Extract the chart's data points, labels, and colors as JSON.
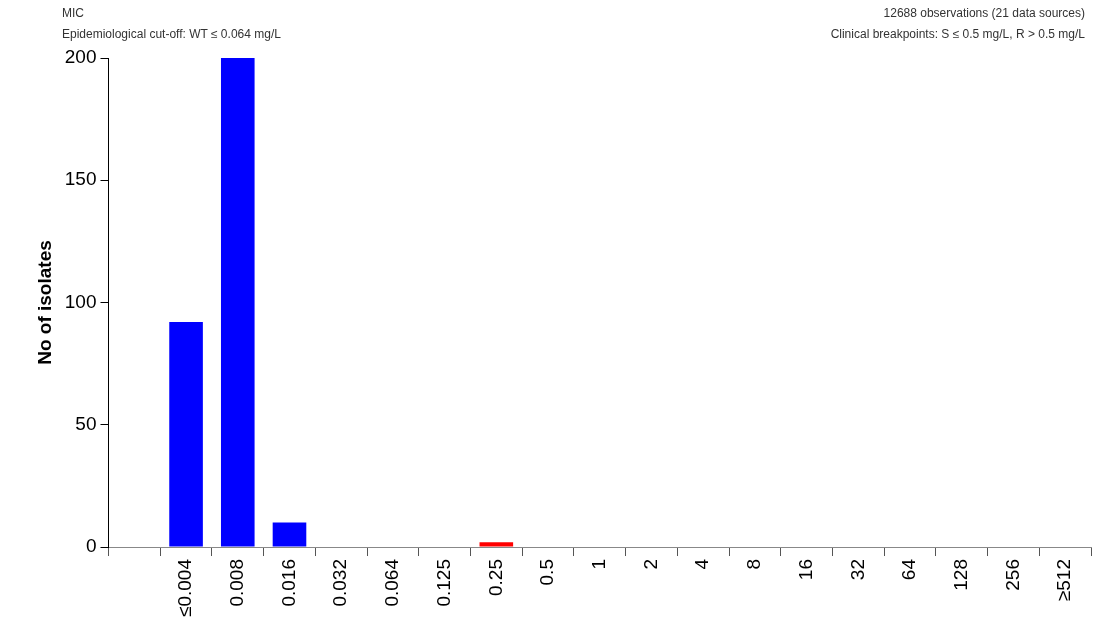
{
  "chart_data": {
    "type": "bar",
    "ylabel": "No of isolates",
    "annotations": [
      "MIC",
      "Epidemiological cut-off: WT ≤ 0.064 mg/L",
      "12688 observations (21 data sources)",
      "Clinical breakpoints: S ≤ 0.5 mg/L,  R > 0.5 mg/L"
    ],
    "categories": [
      null,
      "≤0.004",
      "0.008",
      "0.016",
      "0.032",
      "0.064",
      "0.125",
      "0.25",
      "0.5",
      "1",
      "2",
      "4",
      "8",
      "16",
      "32",
      "64",
      "128",
      "256",
      "≥512"
    ],
    "values": [
      0,
      92,
      200,
      10,
      0,
      0,
      0,
      2,
      0,
      0,
      0,
      0,
      0,
      0,
      0,
      0,
      0,
      0,
      0
    ],
    "colors": [
      "#0000ff",
      "#0000ff",
      "#0000ff",
      "#0000ff",
      "#0000ff",
      "#0000ff",
      "#ff0000",
      "#ff0000",
      "#ff0000",
      "#ff0000",
      "#ff0000",
      "#ff0000",
      "#ff0000",
      "#ff0000",
      "#ff0000",
      "#ff0000",
      "#ff0000",
      "#ff0000",
      "#ff0000"
    ],
    "ylim": [
      0,
      200
    ],
    "yticks": [
      0,
      50,
      100,
      150,
      200
    ],
    "grid": false,
    "legend": false
  }
}
